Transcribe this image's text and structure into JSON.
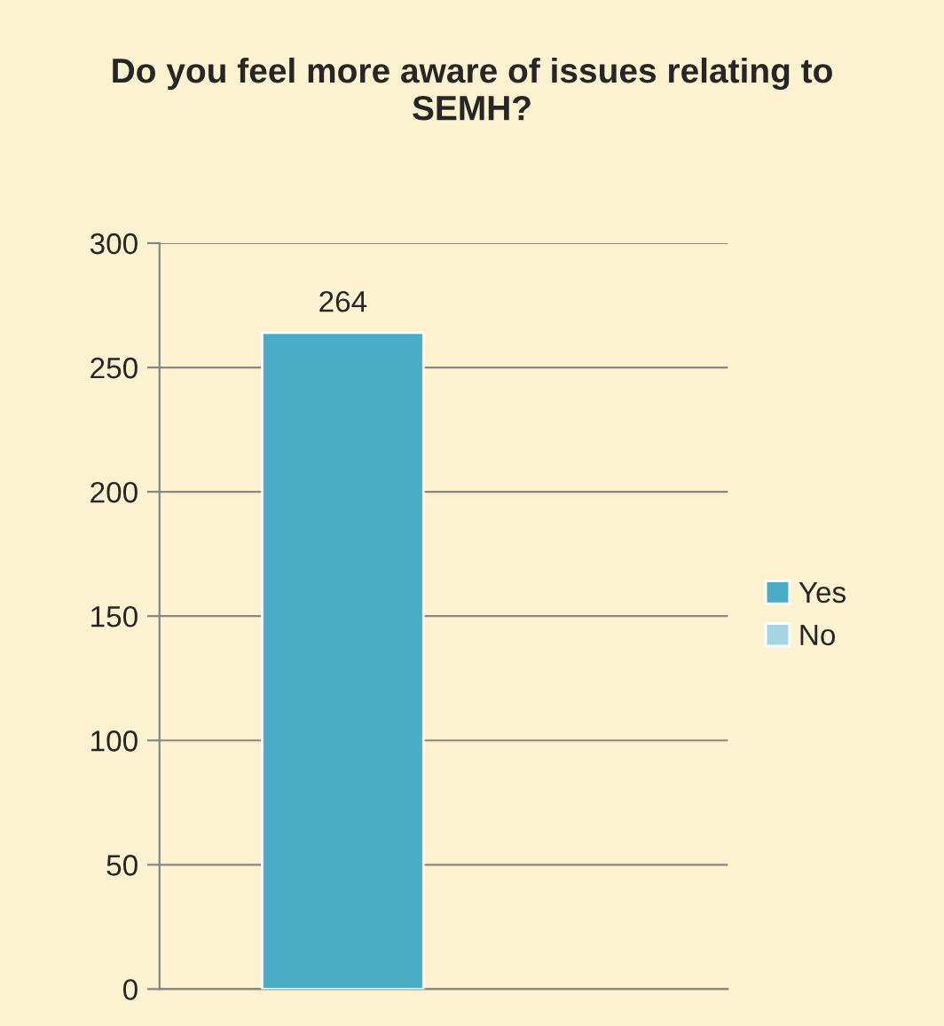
{
  "chart_data": {
    "type": "bar",
    "title": "Do you feel more aware of issues relating to SEMH?",
    "categories": [
      null
    ],
    "series": [
      {
        "name": "Yes",
        "color": "#4bacc6",
        "values": [
          264
        ],
        "value_labels": [
          "264"
        ]
      },
      {
        "name": "No",
        "color": "#a5d5e2",
        "values": [
          null
        ]
      }
    ],
    "ylim": [
      0,
      300
    ],
    "yticks": [
      0,
      50,
      100,
      150,
      200,
      250,
      300
    ],
    "grid": "y",
    "legend": "right"
  }
}
